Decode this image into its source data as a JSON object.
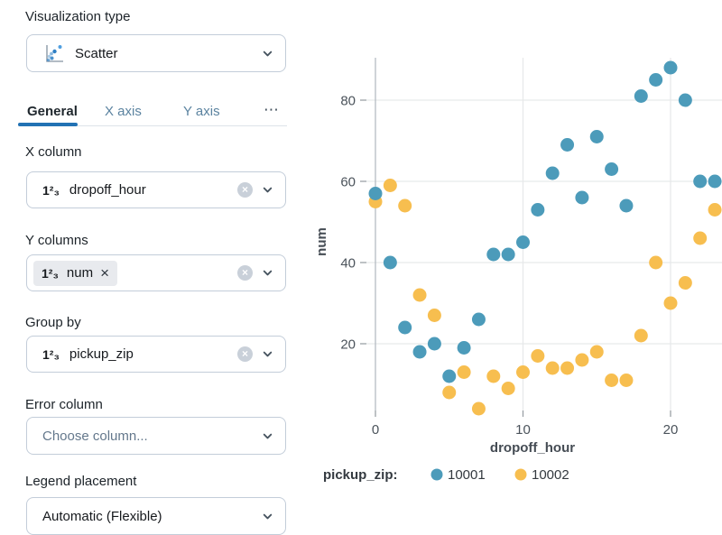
{
  "panel": {
    "visualization_type": {
      "label": "Visualization type",
      "value": "Scatter"
    },
    "tabs": {
      "items": [
        "General",
        "X axis",
        "Y axis"
      ],
      "active": "General",
      "more": "⋯"
    },
    "fields": {
      "x_column": {
        "label": "X column",
        "type_icon": "1²₃",
        "value": "dropoff_hour"
      },
      "y_columns": {
        "label": "Y columns",
        "chip": {
          "type_icon": "1²₃",
          "value": "num",
          "remove": "×"
        }
      },
      "group_by": {
        "label": "Group by",
        "type_icon": "1²₃",
        "value": "pickup_zip"
      },
      "error_column": {
        "label": "Error column",
        "placeholder": "Choose column..."
      },
      "legend_placement": {
        "label": "Legend placement",
        "value": "Automatic (Flexible)"
      }
    },
    "clear_glyph": "×"
  },
  "chart_data": {
    "type": "scatter",
    "x": [
      0,
      1,
      2,
      3,
      4,
      5,
      6,
      7,
      8,
      9,
      10,
      11,
      12,
      13,
      14,
      15,
      16,
      17,
      18,
      19,
      20,
      21,
      22,
      23
    ],
    "series": [
      {
        "name": "10001",
        "color": "#4C9BBA",
        "values": [
          57,
          40,
          24,
          18,
          20,
          12,
          19,
          26,
          42,
          42,
          45,
          53,
          62,
          69,
          56,
          71,
          63,
          54,
          81,
          85,
          88,
          80,
          60,
          60
        ]
      },
      {
        "name": "10002",
        "color": "#F7BE4F",
        "values": [
          55,
          59,
          54,
          32,
          27,
          8,
          13,
          4,
          12,
          9,
          13,
          17,
          14,
          14,
          16,
          18,
          11,
          11,
          22,
          40,
          30,
          35,
          46,
          53
        ]
      }
    ],
    "xlabel": "dropoff_hour",
    "ylabel": "num",
    "legend_title": "pickup_zip:",
    "x_ticks": [
      0,
      10,
      20
    ],
    "y_ticks": [
      20,
      40,
      60,
      80
    ],
    "xlim": [
      -0.4,
      23.5
    ],
    "ylim": [
      3.5,
      90.5
    ],
    "grid": true,
    "legend_position": "bottom",
    "marker_radius": 7.5
  }
}
